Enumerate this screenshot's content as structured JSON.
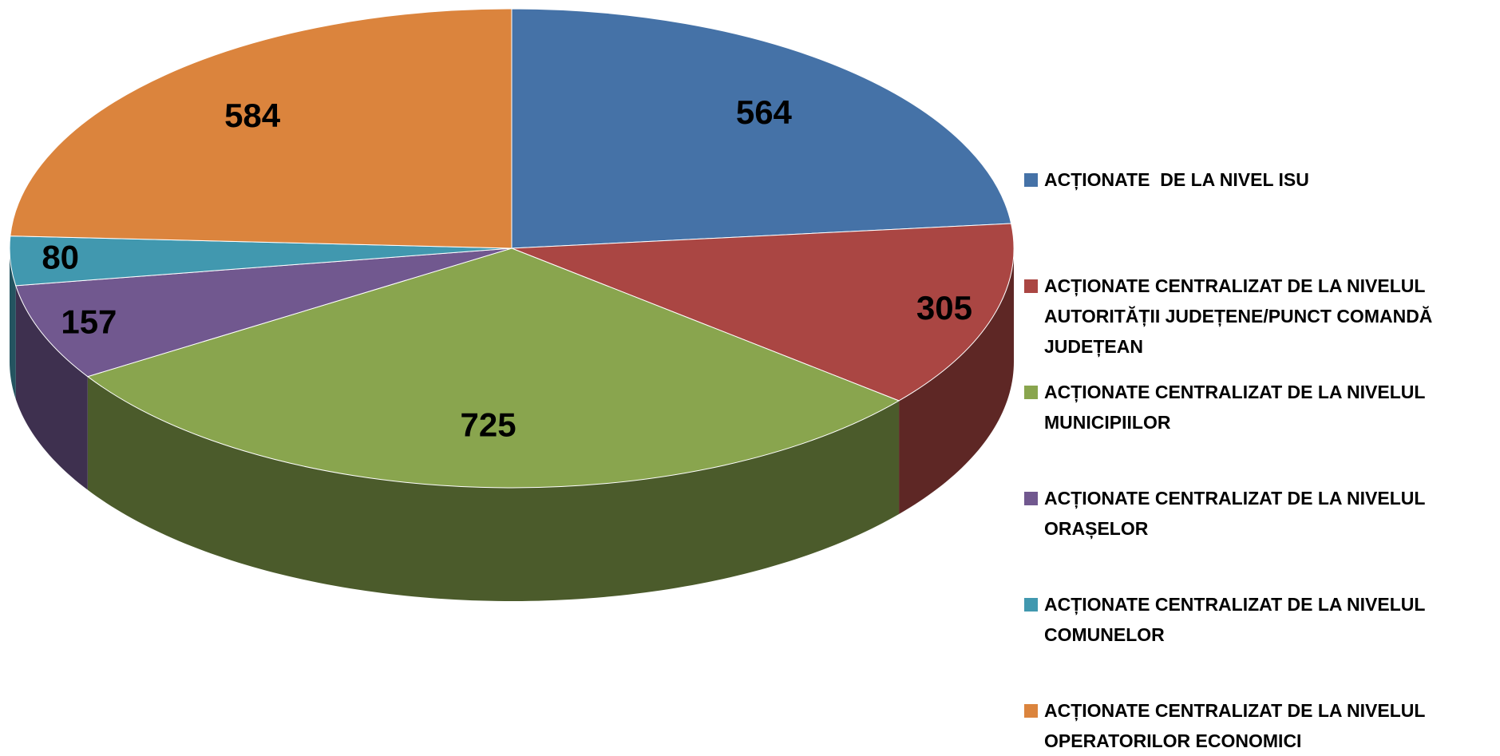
{
  "chart_data": {
    "type": "pie",
    "categories": [
      "ACȚIONATE  DE LA NIVEL ISU",
      "ACȚIONATE CENTRALIZAT DE LA NIVELUL AUTORITĂȚII JUDEȚENE/PUNCT COMANDĂ JUDEȚEAN",
      "ACȚIONATE CENTRALIZAT DE LA NIVELUL MUNICIPIILOR",
      "ACȚIONATE CENTRALIZAT DE LA NIVELUL ORAȘELOR",
      "ACȚIONATE CENTRALIZAT DE LA NIVELUL COMUNELOR",
      "ACȚIONATE CENTRALIZAT DE LA NIVELUL OPERATORILOR ECONOMICI"
    ],
    "values": [
      564,
      305,
      725,
      157,
      80,
      584
    ],
    "colors": [
      "#4572a7",
      "#aa4643",
      "#89a54e",
      "#71588f",
      "#4198af",
      "#db843d"
    ],
    "legend": "right"
  }
}
